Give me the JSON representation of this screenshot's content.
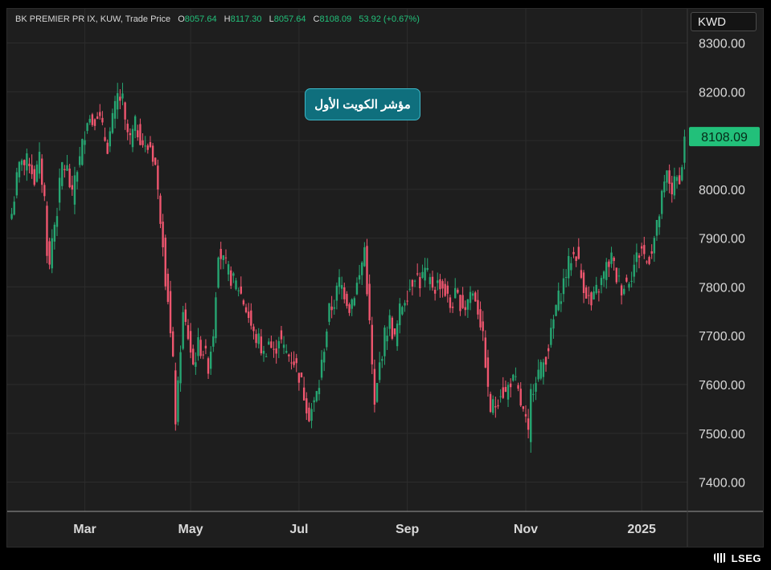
{
  "header": {
    "symbol": "BK PREMIER PR IX, KUW, Trade Price",
    "open_label": "O",
    "open": "8057.64",
    "high_label": "H",
    "high": "8117.30",
    "low_label": "L",
    "low": "8057.64",
    "close_label": "C",
    "close": "8108.09",
    "change": "53.92 (+0.67%)"
  },
  "currency": "KWD",
  "annotation": "مؤشر الكويت الأول",
  "brand": "LSEG",
  "colors": {
    "up": "#26a672",
    "down": "#f0566f",
    "bg": "#1e1e1e",
    "grid": "#2c2c2c",
    "last": "#22c07a"
  },
  "chart_data": {
    "type": "candlestick",
    "title": "BK PREMIER PR IX, KUW, Trade Price",
    "ylim": [
      7340,
      8370
    ],
    "y_ticks": [
      "8300.00",
      "8200.00",
      "8100.00",
      "8000.00",
      "7900.00",
      "7800.00",
      "7700.00",
      "7600.00",
      "7500.00",
      "7400.00"
    ],
    "x_tick_labels": [
      "Mar",
      "May",
      "Jul",
      "Sep",
      "Nov",
      "2025"
    ],
    "last_price": "8108.09",
    "grid": true,
    "close_path": [
      [
        0,
        7950
      ],
      [
        2,
        8020
      ],
      [
        4,
        8070
      ],
      [
        5,
        8050
      ],
      [
        7,
        8060
      ],
      [
        9,
        8020
      ],
      [
        11,
        8060
      ],
      [
        13,
        7980
      ],
      [
        14,
        7880
      ],
      [
        15,
        7840
      ],
      [
        16,
        7900
      ],
      [
        18,
        7960
      ],
      [
        20,
        8050
      ],
      [
        22,
        8040
      ],
      [
        24,
        7980
      ],
      [
        25,
        8030
      ],
      [
        27,
        8060
      ],
      [
        30,
        8150
      ],
      [
        32,
        8140
      ],
      [
        34,
        8160
      ],
      [
        36,
        8120
      ],
      [
        38,
        8090
      ],
      [
        40,
        8140
      ],
      [
        42,
        8190
      ],
      [
        44,
        8180
      ],
      [
        45,
        8130
      ],
      [
        47,
        8100
      ],
      [
        49,
        8130
      ],
      [
        51,
        8110
      ],
      [
        53,
        8080
      ],
      [
        55,
        8090
      ],
      [
        57,
        8050
      ],
      [
        58,
        7990
      ],
      [
        60,
        7900
      ],
      [
        61,
        7820
      ],
      [
        62,
        7780
      ],
      [
        63,
        7700
      ],
      [
        64,
        7640
      ],
      [
        65,
        7530
      ],
      [
        66,
        7590
      ],
      [
        67,
        7680
      ],
      [
        68,
        7740
      ],
      [
        70,
        7700
      ],
      [
        72,
        7640
      ],
      [
        74,
        7680
      ],
      [
        76,
        7670
      ],
      [
        78,
        7640
      ],
      [
        80,
        7710
      ],
      [
        82,
        7880
      ],
      [
        84,
        7850
      ],
      [
        86,
        7830
      ],
      [
        88,
        7810
      ],
      [
        90,
        7800
      ],
      [
        92,
        7770
      ],
      [
        94,
        7740
      ],
      [
        96,
        7700
      ],
      [
        98,
        7690
      ],
      [
        100,
        7660
      ],
      [
        102,
        7690
      ],
      [
        104,
        7660
      ],
      [
        106,
        7700
      ],
      [
        108,
        7670
      ],
      [
        110,
        7660
      ],
      [
        112,
        7650
      ],
      [
        114,
        7620
      ],
      [
        116,
        7580
      ],
      [
        118,
        7540
      ],
      [
        120,
        7560
      ],
      [
        122,
        7600
      ],
      [
        124,
        7680
      ],
      [
        126,
        7750
      ],
      [
        128,
        7770
      ],
      [
        130,
        7810
      ],
      [
        132,
        7790
      ],
      [
        134,
        7760
      ],
      [
        136,
        7790
      ],
      [
        138,
        7820
      ],
      [
        140,
        7880
      ],
      [
        142,
        7720
      ],
      [
        144,
        7550
      ],
      [
        146,
        7640
      ],
      [
        148,
        7700
      ],
      [
        150,
        7730
      ],
      [
        152,
        7690
      ],
      [
        154,
        7750
      ],
      [
        156,
        7780
      ],
      [
        158,
        7800
      ],
      [
        160,
        7830
      ],
      [
        162,
        7810
      ],
      [
        164,
        7830
      ],
      [
        166,
        7810
      ],
      [
        168,
        7800
      ],
      [
        170,
        7810
      ],
      [
        172,
        7790
      ],
      [
        174,
        7760
      ],
      [
        176,
        7780
      ],
      [
        178,
        7770
      ],
      [
        180,
        7760
      ],
      [
        182,
        7790
      ],
      [
        184,
        7780
      ],
      [
        186,
        7730
      ],
      [
        188,
        7650
      ],
      [
        189,
        7580
      ],
      [
        190,
        7550
      ],
      [
        192,
        7560
      ],
      [
        194,
        7590
      ],
      [
        196,
        7580
      ],
      [
        198,
        7610
      ],
      [
        200,
        7600
      ],
      [
        202,
        7560
      ],
      [
        204,
        7520
      ],
      [
        205,
        7490
      ],
      [
        206,
        7580
      ],
      [
        208,
        7620
      ],
      [
        210,
        7630
      ],
      [
        212,
        7660
      ],
      [
        214,
        7700
      ],
      [
        216,
        7760
      ],
      [
        218,
        7790
      ],
      [
        220,
        7830
      ],
      [
        222,
        7860
      ],
      [
        224,
        7870
      ],
      [
        226,
        7820
      ],
      [
        228,
        7790
      ],
      [
        230,
        7760
      ],
      [
        232,
        7790
      ],
      [
        234,
        7810
      ],
      [
        236,
        7840
      ],
      [
        238,
        7860
      ],
      [
        240,
        7820
      ],
      [
        242,
        7800
      ],
      [
        244,
        7810
      ],
      [
        246,
        7830
      ],
      [
        248,
        7860
      ],
      [
        250,
        7880
      ],
      [
        252,
        7850
      ],
      [
        254,
        7880
      ],
      [
        256,
        7920
      ],
      [
        258,
        7980
      ],
      [
        260,
        8030
      ],
      [
        262,
        8000
      ],
      [
        264,
        8020
      ],
      [
        266,
        8040
      ],
      [
        267,
        8108.09
      ]
    ],
    "x_tick_positions": [
      29,
      71,
      114,
      157,
      204,
      250
    ],
    "n_candles": 268
  }
}
